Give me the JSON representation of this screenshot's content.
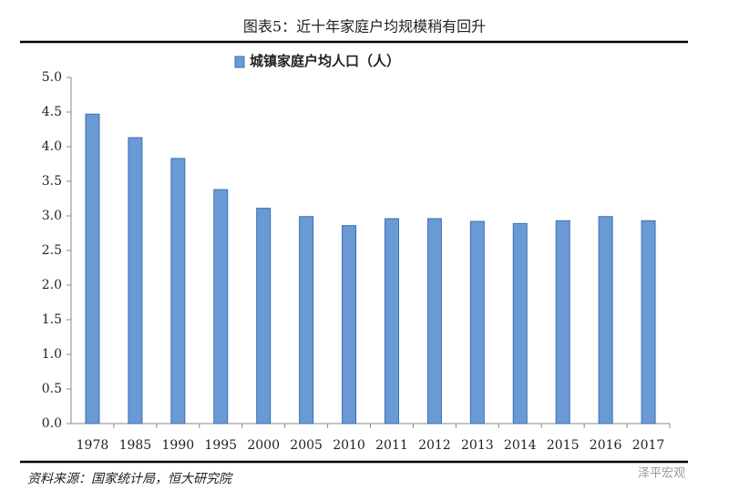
{
  "chart_data": {
    "type": "bar",
    "title": "图表5：近十年家庭户均规模稍有回升",
    "source": "资料来源：国家统计局，恒大研究院",
    "watermark": "泽平宏观",
    "categories": [
      "1978",
      "1985",
      "1990",
      "1995",
      "2000",
      "2005",
      "2010",
      "2011",
      "2012",
      "2013",
      "2014",
      "2015",
      "2016",
      "2017"
    ],
    "series": [
      {
        "name": "城镇家庭户均人口（人）",
        "color": "#6a9ad6",
        "values": [
          4.47,
          4.13,
          3.83,
          3.38,
          3.11,
          2.99,
          2.86,
          2.96,
          2.96,
          2.92,
          2.89,
          2.93,
          2.99,
          2.93
        ]
      }
    ],
    "ylim": [
      0,
      5
    ],
    "yticks": [
      {
        "value": 0,
        "label": "0.0"
      },
      0.5,
      {
        "value": 1,
        "label": "1.0"
      },
      1.5,
      {
        "value": 2,
        "label": "2.0"
      },
      2.5,
      {
        "value": 3,
        "label": "3.0"
      },
      3.5,
      {
        "value": 4,
        "label": "4.0"
      },
      4.5,
      {
        "value": 5,
        "label": "5.0"
      }
    ],
    "grid": false,
    "legend": "top"
  }
}
